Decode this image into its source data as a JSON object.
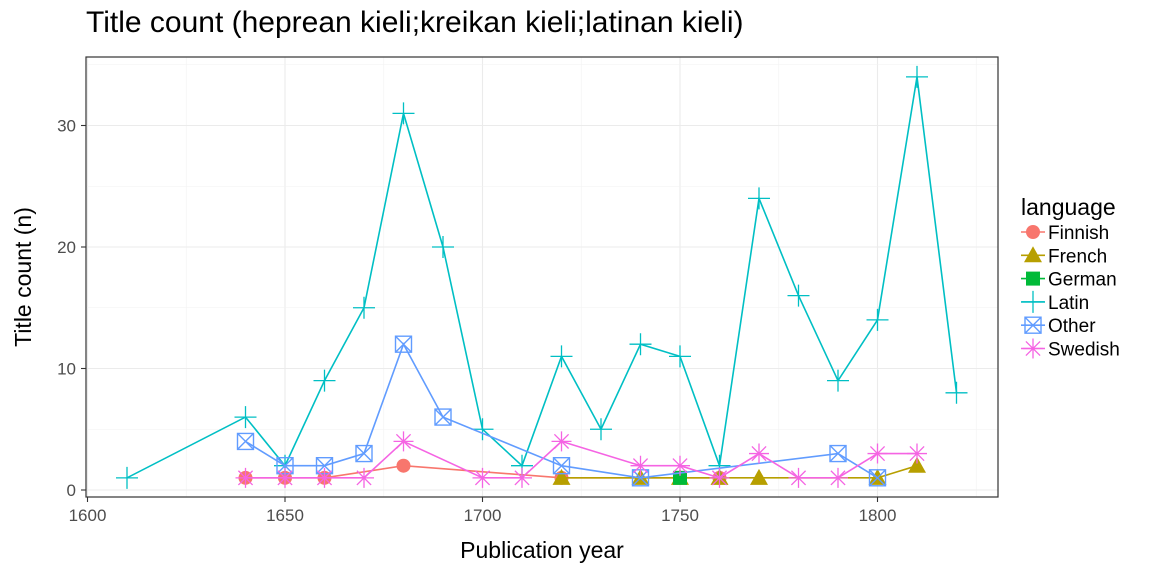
{
  "chart_data": {
    "type": "line",
    "title": "Title count (heprean kieli;kreikan kieli;latinan kieli)",
    "xlabel": "Publication year",
    "ylabel": "Title count (n)",
    "xlim": [
      1600,
      1830
    ],
    "ylim": [
      0,
      35
    ],
    "x_ticks": [
      1600,
      1650,
      1700,
      1750,
      1800
    ],
    "y_ticks": [
      0,
      10,
      20,
      30
    ],
    "grid": true,
    "legend": {
      "title": "language",
      "position": "right"
    },
    "series": [
      {
        "name": "Finnish",
        "color": "#F8766D",
        "marker": "circle",
        "x": [
          1640,
          1650,
          1660,
          1680,
          1720,
          1760
        ],
        "y": [
          1,
          1,
          1,
          2,
          1,
          1
        ]
      },
      {
        "name": "French",
        "color": "#B79F00",
        "marker": "triangle",
        "x": [
          1720,
          1740,
          1750,
          1760,
          1770,
          1800,
          1810
        ],
        "y": [
          1,
          1,
          1,
          1,
          1,
          1,
          2
        ]
      },
      {
        "name": "German",
        "color": "#00BA38",
        "marker": "square",
        "x": [
          1750
        ],
        "y": [
          1
        ]
      },
      {
        "name": "Latin",
        "color": "#00BFC4",
        "marker": "plus",
        "x": [
          1610,
          1640,
          1650,
          1660,
          1670,
          1680,
          1690,
          1700,
          1710,
          1720,
          1730,
          1740,
          1750,
          1760,
          1770,
          1780,
          1790,
          1800,
          1810,
          1820
        ],
        "y": [
          1,
          6,
          2,
          9,
          15,
          31,
          20,
          5,
          2,
          11,
          5,
          12,
          11,
          2,
          24,
          16,
          9,
          14,
          34,
          8
        ]
      },
      {
        "name": "Other",
        "color": "#619CFF",
        "marker": "square-cross",
        "x": [
          1640,
          1650,
          1660,
          1670,
          1680,
          1690,
          1720,
          1740,
          1790,
          1800
        ],
        "y": [
          4,
          2,
          2,
          3,
          12,
          6,
          2,
          1,
          3,
          1
        ]
      },
      {
        "name": "Swedish",
        "color": "#F564E3",
        "marker": "asterisk",
        "x": [
          1640,
          1650,
          1660,
          1670,
          1680,
          1700,
          1710,
          1720,
          1740,
          1750,
          1760,
          1770,
          1780,
          1790,
          1800,
          1810
        ],
        "y": [
          1,
          1,
          1,
          1,
          4,
          1,
          1,
          4,
          2,
          2,
          1,
          3,
          1,
          1,
          3,
          3
        ]
      }
    ]
  }
}
